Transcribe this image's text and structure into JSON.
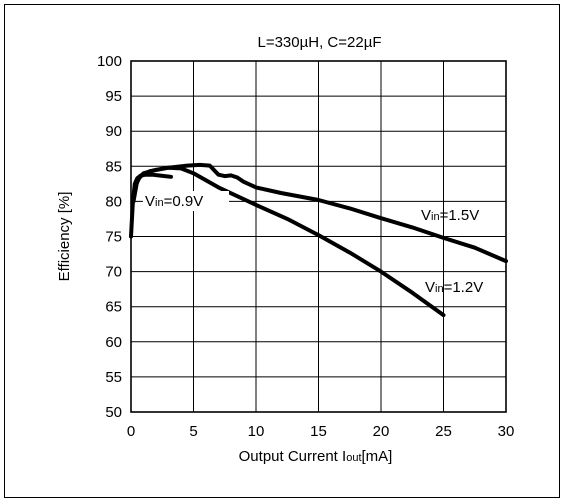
{
  "chart_data": {
    "type": "line",
    "title": "L=330µH, C=22µF",
    "xlabel": {
      "main": "Output Current  I",
      "sub": "out",
      "unit": "[mA]"
    },
    "ylabel": "Efficiency [%]",
    "xlim": [
      0,
      30
    ],
    "ylim": [
      50,
      100
    ],
    "xticks": [
      "0",
      "5",
      "10",
      "15",
      "20",
      "25",
      "30"
    ],
    "yticks": [
      "50",
      "55",
      "60",
      "65",
      "70",
      "75",
      "80",
      "85",
      "90",
      "95",
      "100"
    ],
    "grid": true,
    "series": [
      {
        "name": "Vin=0.9V",
        "label_parts": {
          "v": "V",
          "sub": "in",
          "rest": "=0.9V"
        },
        "x": [
          0,
          0.15,
          0.3,
          0.5,
          0.8,
          1.2,
          1.7,
          2.2,
          2.7,
          3.2
        ],
        "y": [
          75,
          80,
          82.5,
          83.3,
          83.7,
          83.8,
          83.8,
          83.7,
          83.6,
          83.5
        ]
      },
      {
        "name": "Vin=1.2V",
        "label_parts": {
          "v": "V",
          "sub": "in",
          "rest": "=1.2V"
        },
        "x": [
          0.2,
          0.5,
          1,
          2,
          3,
          4,
          5,
          7,
          10,
          12.5,
          15,
          17.5,
          20,
          22.5,
          25
        ],
        "y": [
          80,
          83,
          84,
          84.5,
          84.8,
          84.7,
          84,
          82,
          79.5,
          77.5,
          75.2,
          72.7,
          70,
          67,
          63.8
        ]
      },
      {
        "name": "Vin=1.5V",
        "label_parts": {
          "v": "V",
          "sub": "in",
          "rest": "=1.5V"
        },
        "x": [
          0.3,
          0.7,
          1.5,
          3,
          4.5,
          5.5,
          6.3,
          7,
          7.5,
          8,
          8.5,
          9,
          10,
          12,
          15,
          17.5,
          20,
          22.5,
          25,
          27.5,
          30
        ],
        "y": [
          82,
          83.5,
          84.3,
          84.8,
          85.1,
          85.2,
          85.1,
          83.8,
          83.6,
          83.7,
          83.4,
          82.8,
          82,
          81.2,
          80.2,
          79,
          77.6,
          76.3,
          74.8,
          73.4,
          71.5
        ]
      }
    ]
  }
}
